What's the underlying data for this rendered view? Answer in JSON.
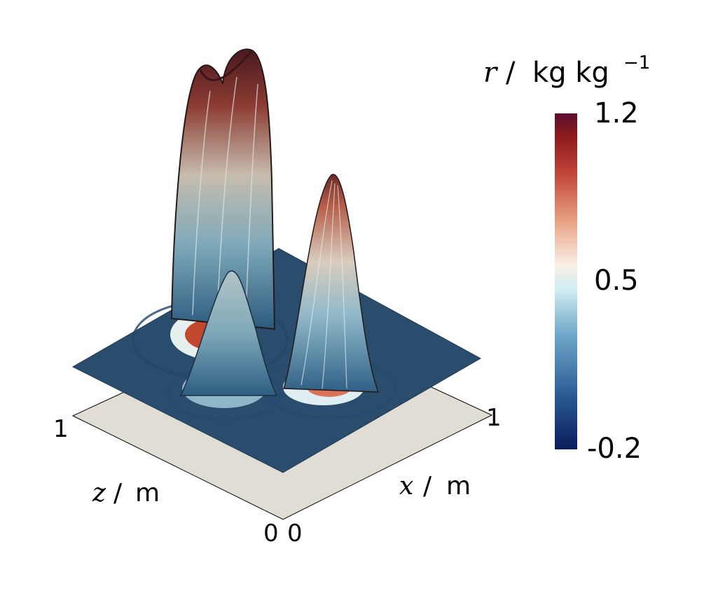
{
  "chart_data": {
    "type": "surface3d",
    "colorbar": {
      "variable": "r",
      "unit_base": "kg kg",
      "unit_exp": "−1",
      "max_label": "1.2",
      "mid_label": "0.5",
      "min_label": "-0.2",
      "range": [
        -0.2,
        1.2
      ],
      "colormap": "cool-to-warm (blue-white-red)",
      "colors": [
        "#0b1c5a",
        "#2a5b93",
        "#6fa7c9",
        "#d3eef2",
        "#f8efe3",
        "#e9a184",
        "#c1453a",
        "#8f1b1c",
        "#5b0f30"
      ]
    },
    "x_axis": {
      "name": "x",
      "unit": "m",
      "tick_min": "0",
      "tick_max": "1"
    },
    "z_axis": {
      "name": "z",
      "unit": "m",
      "tick_min": "0",
      "tick_max": "1"
    },
    "peaks": [
      {
        "shape": "slotted cylinder",
        "peak_value": 1.2
      },
      {
        "shape": "cosine bell",
        "peak_value": 1.0
      },
      {
        "shape": "smooth hump",
        "peak_value": 0.7
      }
    ],
    "base_value": 0.0
  }
}
